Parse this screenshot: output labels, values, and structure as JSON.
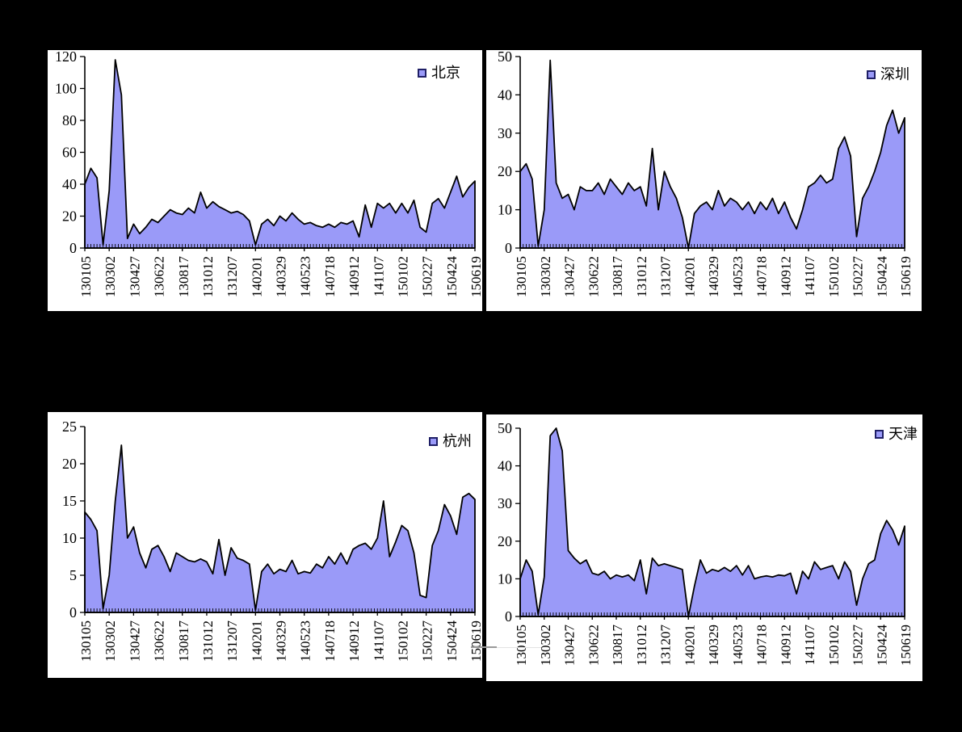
{
  "page": {
    "description": "four weekly area charts on black background"
  },
  "colors": {
    "page_background": "#000000",
    "panel_background": "#FFFFFF",
    "area_fill": "#9A9AF8",
    "area_outline": "#000000",
    "axis": "#000000",
    "legend_swatch_fill": "#9A9AF8",
    "legend_swatch_border": "#1F1F66",
    "stray_mark": "#9A9A9A"
  },
  "chart_data": [
    {
      "type": "area",
      "title": "",
      "series_name": "北京",
      "legend_position": "top-right",
      "xlabel": "",
      "ylabel": "",
      "ylim": [
        0,
        120
      ],
      "yticks": [
        0,
        20,
        40,
        60,
        80,
        100,
        120
      ],
      "categories": [
        "130105",
        "130302",
        "130427",
        "130622",
        "130817",
        "131012",
        "131207",
        "140201",
        "140329",
        "140523",
        "140718",
        "140912",
        "141107",
        "150102",
        "150227",
        "150424",
        "150619"
      ],
      "values": [
        40,
        50,
        44,
        2,
        36,
        118,
        96,
        6,
        15,
        9,
        13,
        18,
        16,
        20,
        24,
        22,
        21,
        25,
        22,
        35,
        25,
        29,
        26,
        24,
        22,
        23,
        21,
        17,
        2,
        15,
        18,
        14,
        20,
        17,
        22,
        18,
        15,
        16,
        14,
        13,
        15,
        13,
        16,
        15,
        17,
        7,
        27,
        13,
        28,
        25,
        28,
        22,
        28,
        22,
        30,
        13,
        10,
        28,
        31,
        25,
        35,
        45,
        32,
        38,
        42
      ]
    },
    {
      "type": "area",
      "title": "",
      "series_name": "深圳",
      "legend_position": "top-right",
      "xlabel": "",
      "ylabel": "",
      "ylim": [
        0,
        50
      ],
      "yticks": [
        0,
        10,
        20,
        30,
        40,
        50
      ],
      "categories": [
        "130105",
        "130302",
        "130427",
        "130622",
        "130817",
        "131012",
        "131207",
        "140201",
        "140329",
        "140523",
        "140718",
        "140912",
        "141107",
        "150102",
        "150227",
        "150424",
        "150619"
      ],
      "values": [
        20,
        22,
        18,
        0.5,
        10,
        49,
        17,
        13,
        14,
        10,
        16,
        15,
        15,
        17,
        14,
        18,
        16,
        14,
        17,
        15,
        16,
        11,
        26,
        10,
        20,
        16,
        13,
        8,
        0,
        9,
        11,
        12,
        10,
        15,
        11,
        13,
        12,
        10,
        12,
        9,
        12,
        10,
        13,
        9,
        12,
        8,
        5,
        10,
        16,
        17,
        19,
        17,
        18,
        26,
        29,
        24,
        3,
        13,
        16,
        20,
        25,
        32,
        36,
        30,
        34
      ]
    },
    {
      "type": "area",
      "title": "",
      "series_name": "杭州",
      "legend_position": "top-right",
      "xlabel": "",
      "ylabel": "",
      "ylim": [
        0,
        25
      ],
      "yticks": [
        0,
        5,
        10,
        15,
        20,
        25
      ],
      "categories": [
        "130105",
        "130302",
        "130427",
        "130622",
        "130817",
        "131012",
        "131207",
        "140201",
        "140329",
        "140523",
        "140718",
        "140912",
        "141107",
        "150102",
        "150227",
        "150424",
        "150619"
      ],
      "values": [
        13.5,
        12.5,
        11,
        0.5,
        5,
        15,
        22.5,
        10,
        11.5,
        8,
        6,
        8.5,
        9,
        7.5,
        5.5,
        8,
        7.5,
        7,
        6.8,
        7.2,
        6.8,
        5.2,
        9.8,
        5,
        8.7,
        7.3,
        7,
        6.5,
        0.3,
        5.5,
        6.5,
        5.2,
        5.8,
        5.5,
        7,
        5.2,
        5.5,
        5.3,
        6.5,
        6,
        7.5,
        6.5,
        8,
        6.5,
        8.5,
        9,
        9.3,
        8.5,
        10,
        15,
        7.5,
        9.5,
        11.7,
        11,
        8,
        2.3,
        2,
        9,
        11,
        14.5,
        13,
        10.5,
        15.5,
        16,
        15.2
      ]
    },
    {
      "type": "area",
      "title": "",
      "series_name": "天津",
      "legend_position": "top-right",
      "xlabel": "",
      "ylabel": "",
      "ylim": [
        0,
        50
      ],
      "yticks": [
        0,
        10,
        20,
        30,
        40,
        50
      ],
      "categories": [
        "130105",
        "130302",
        "130427",
        "130622",
        "130817",
        "131012",
        "131207",
        "140201",
        "140329",
        "140523",
        "140718",
        "140912",
        "141107",
        "150102",
        "150227",
        "150424",
        "150619"
      ],
      "values": [
        10,
        15,
        12,
        0.5,
        10.5,
        48,
        50,
        44,
        17.5,
        15.5,
        14,
        15,
        11.5,
        11,
        12,
        10,
        11,
        10.5,
        11,
        9.5,
        15,
        6,
        15.5,
        13.5,
        14,
        13.5,
        13,
        12.5,
        0,
        8,
        15,
        11.5,
        12.5,
        12,
        13,
        12,
        13.5,
        11,
        13.5,
        10,
        10.5,
        10.8,
        10.5,
        11,
        10.8,
        11.5,
        6,
        12,
        10,
        14.5,
        12.5,
        13,
        13.5,
        10,
        14.5,
        12,
        3,
        10,
        14,
        15,
        22,
        25.5,
        23,
        19,
        24
      ]
    }
  ]
}
